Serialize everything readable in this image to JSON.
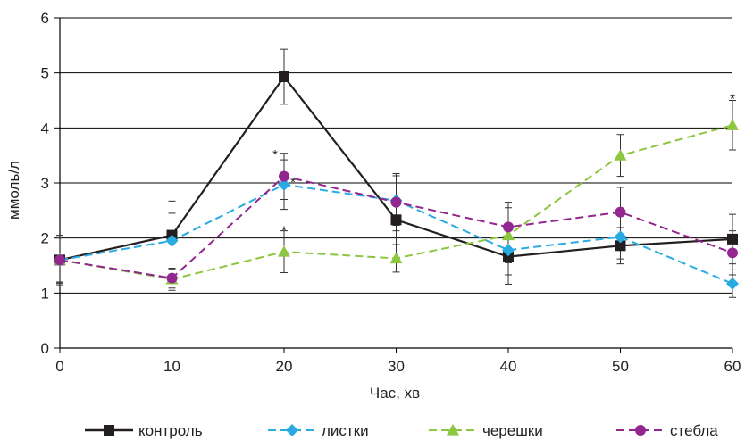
{
  "chart_data": {
    "type": "line",
    "xlabel": "Час, хв",
    "ylabel": "ммоль/л",
    "x": [
      0,
      10,
      20,
      30,
      40,
      50,
      60
    ],
    "xlim": [
      0,
      60
    ],
    "ylim": [
      0,
      6
    ],
    "xticks": [
      "0",
      "10",
      "20",
      "30",
      "40",
      "50",
      "60"
    ],
    "yticks": [
      "0",
      "1",
      "2",
      "3",
      "4",
      "5",
      "6"
    ],
    "grid": "horizontal",
    "legend_position": "bottom",
    "series": [
      {
        "name": "контроль",
        "color": "#231f20",
        "dash": "solid",
        "marker": "square",
        "values": [
          1.6,
          2.05,
          4.93,
          2.33,
          1.66,
          1.86,
          1.98
        ],
        "errors": [
          0.45,
          0.62,
          0.5,
          0.45,
          0.5,
          0.33,
          0.45
        ]
      },
      {
        "name": "листки",
        "color": "#29abe2",
        "dash": "dashed",
        "marker": "diamond",
        "values": [
          1.6,
          1.95,
          2.97,
          2.68,
          1.78,
          2.02,
          1.17
        ],
        "errors": [
          0.4,
          0.5,
          0.45,
          0.45,
          0.45,
          0.4,
          0.25
        ]
      },
      {
        "name": "черешки",
        "color": "#8dc63f",
        "dash": "dashed",
        "marker": "triangle",
        "values": [
          1.6,
          1.25,
          1.75,
          1.63,
          2.05,
          3.5,
          4.05
        ],
        "errors": [
          0.42,
          0.2,
          0.38,
          0.25,
          0.5,
          0.38,
          0.45
        ]
      },
      {
        "name": "стебла",
        "color": "#92278f",
        "dash": "dashed",
        "marker": "circle",
        "values": [
          1.6,
          1.27,
          3.12,
          2.65,
          2.2,
          2.47,
          1.73
        ],
        "errors": [
          0.42,
          0.18,
          0.42,
          0.52,
          0.45,
          0.45,
          0.4
        ]
      }
    ],
    "annotations": [
      {
        "text": "*",
        "x": 20,
        "y": 3.5
      },
      {
        "text": "*",
        "x": 20,
        "y": 3.0
      },
      {
        "text": "*",
        "x": 20,
        "y": 2.12
      },
      {
        "text": "*",
        "x": 60,
        "y": 4.52
      }
    ]
  }
}
